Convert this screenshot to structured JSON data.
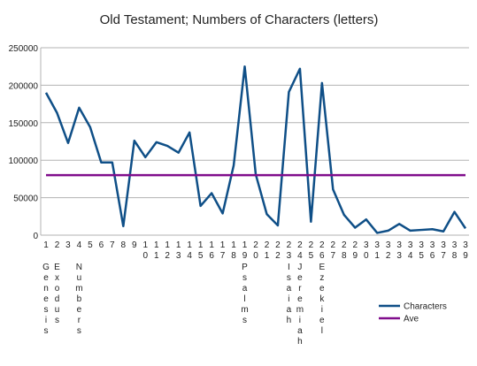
{
  "chart_data": {
    "type": "line",
    "title": "Old Testament; Numbers of Characters (letters)",
    "categories": [
      "1",
      "2",
      "3",
      "4",
      "5",
      "6",
      "7",
      "8",
      "9",
      "10",
      "11",
      "12",
      "13",
      "14",
      "15",
      "16",
      "17",
      "18",
      "19",
      "20",
      "21",
      "22",
      "23",
      "24",
      "25",
      "26",
      "27",
      "28",
      "29",
      "30",
      "31",
      "32",
      "33",
      "34",
      "35",
      "36",
      "37",
      "38",
      "39"
    ],
    "category_names": [
      "Genesis",
      "Exodus",
      null,
      "Numbers",
      null,
      null,
      null,
      null,
      null,
      null,
      null,
      null,
      null,
      null,
      null,
      null,
      null,
      null,
      "Psalms",
      null,
      null,
      null,
      "Isaiah",
      "Jeremiah",
      null,
      "Ezekiel",
      null,
      null,
      null,
      null,
      null,
      null,
      null,
      null,
      null,
      null,
      null,
      null,
      null
    ],
    "series": [
      {
        "name": "Characters",
        "color": "#0f4f87",
        "values": [
          190000,
          163000,
          123000,
          170000,
          144000,
          97000,
          97000,
          12000,
          126000,
          104000,
          124000,
          119000,
          110000,
          137000,
          39000,
          56000,
          29000,
          93000,
          225000,
          81000,
          28000,
          13000,
          191000,
          222000,
          18000,
          203000,
          61000,
          27000,
          10000,
          21000,
          3000,
          6000,
          15000,
          6000,
          7000,
          8000,
          5000,
          31000,
          9000
        ]
      },
      {
        "name": "Ave",
        "color": "#800d8c",
        "values": [
          80000,
          80000,
          80000,
          80000,
          80000,
          80000,
          80000,
          80000,
          80000,
          80000,
          80000,
          80000,
          80000,
          80000,
          80000,
          80000,
          80000,
          80000,
          80000,
          80000,
          80000,
          80000,
          80000,
          80000,
          80000,
          80000,
          80000,
          80000,
          80000,
          80000,
          80000,
          80000,
          80000,
          80000,
          80000,
          80000,
          80000,
          80000,
          80000
        ]
      }
    ],
    "ylim": [
      0,
      250000
    ],
    "yticks": [
      0,
      50000,
      100000,
      150000,
      200000,
      250000
    ],
    "grid": true
  }
}
